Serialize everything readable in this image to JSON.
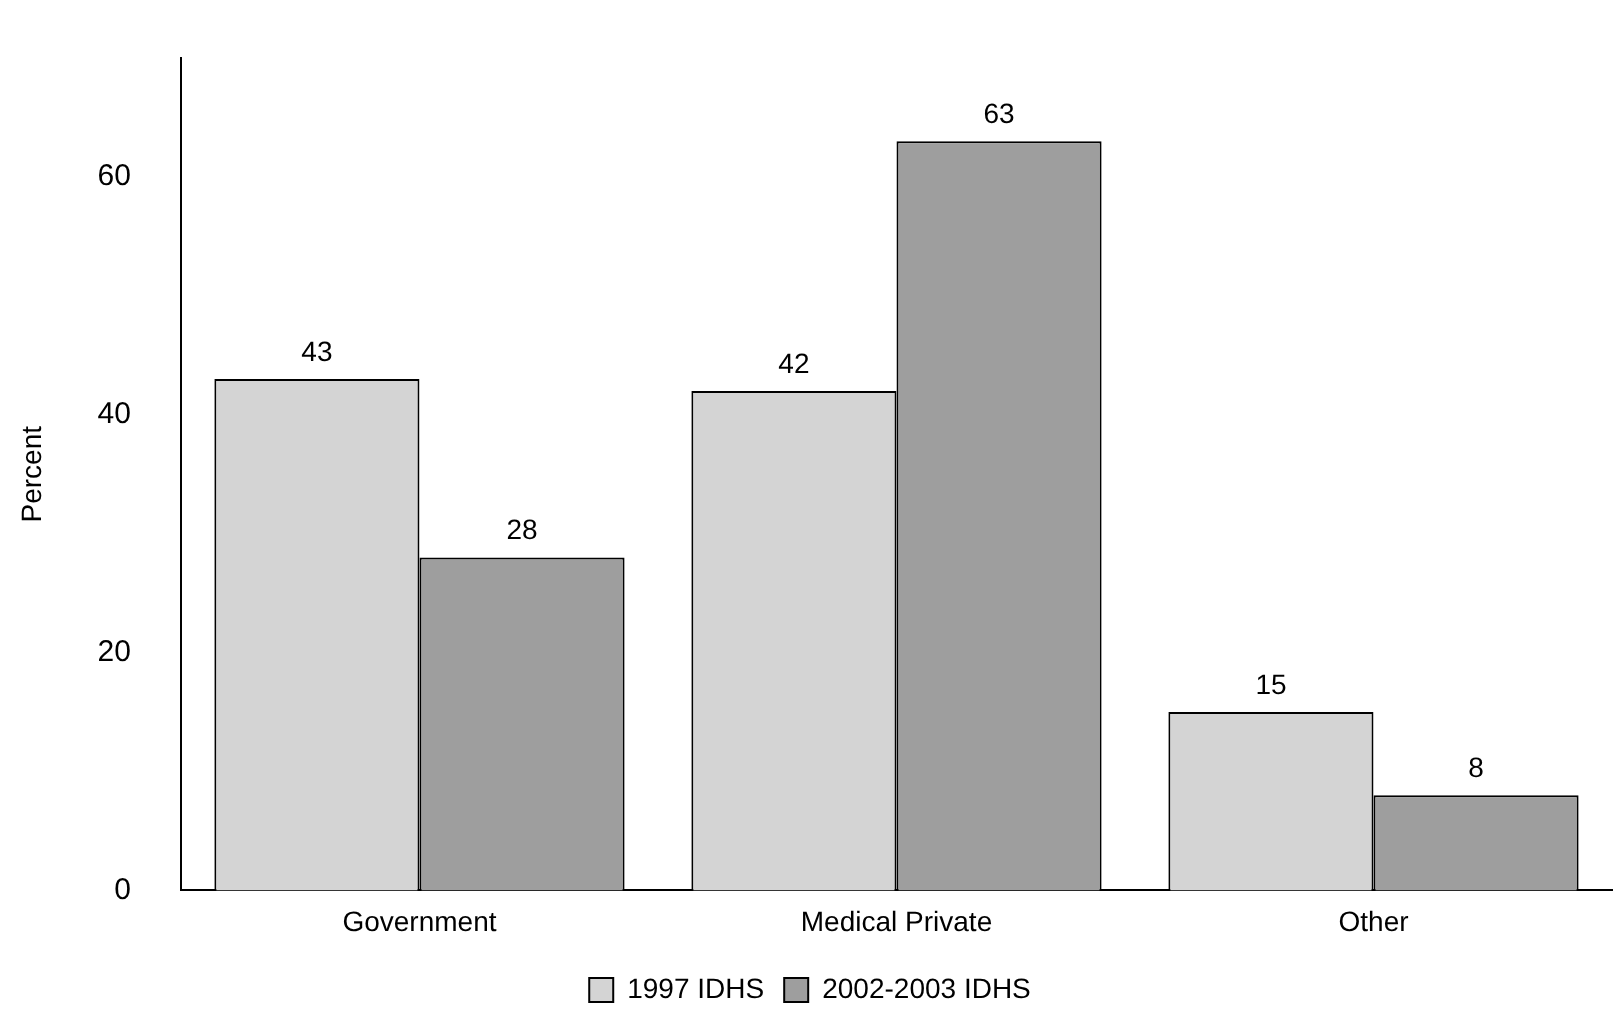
{
  "chart_data": {
    "type": "bar",
    "ylabel": "Percent",
    "categories": [
      "Government",
      "Medical Private",
      "Other"
    ],
    "series": [
      {
        "name": "1997 IDHS",
        "color": "#d4d4d4",
        "values": [
          43,
          42,
          15
        ]
      },
      {
        "name": "2002-2003 IDHS",
        "color": "#9e9e9e",
        "values": [
          28,
          63,
          8
        ]
      }
    ],
    "ylim": [
      0,
      70
    ],
    "yticks": [
      0,
      20,
      40,
      60
    ],
    "grid": false,
    "legend": "bottom",
    "data_labels": true
  }
}
